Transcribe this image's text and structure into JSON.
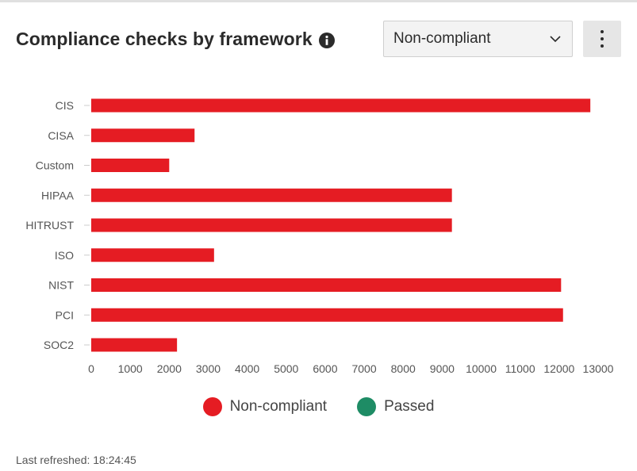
{
  "header": {
    "title": "Compliance checks by framework",
    "info_icon": "info-circle-icon",
    "filter_value": "Non-compliant",
    "menu_icon": "kebab-menu-icon"
  },
  "footer": {
    "last_refreshed": "Last refreshed: 18:24:45"
  },
  "colors": {
    "noncompliant": "#e51c23",
    "passed": "#1e8c65"
  },
  "chart_data": {
    "type": "bar",
    "orientation": "horizontal",
    "categories": [
      "CIS",
      "CISA",
      "Custom",
      "HIPAA",
      "HITRUST",
      "ISO",
      "NIST",
      "PCI",
      "SOC2"
    ],
    "series": [
      {
        "name": "Non-compliant",
        "values": [
          12800,
          2650,
          2000,
          9250,
          9250,
          3150,
          12050,
          12100,
          2200
        ]
      },
      {
        "name": "Passed",
        "values": [
          0,
          0,
          0,
          0,
          0,
          0,
          0,
          0,
          0
        ]
      }
    ],
    "xlim": [
      0,
      13000
    ],
    "xticks": [
      0,
      1000,
      2000,
      3000,
      4000,
      5000,
      6000,
      7000,
      8000,
      9000,
      10000,
      11000,
      12000,
      13000
    ],
    "legend_position": "bottom",
    "grid": false
  }
}
